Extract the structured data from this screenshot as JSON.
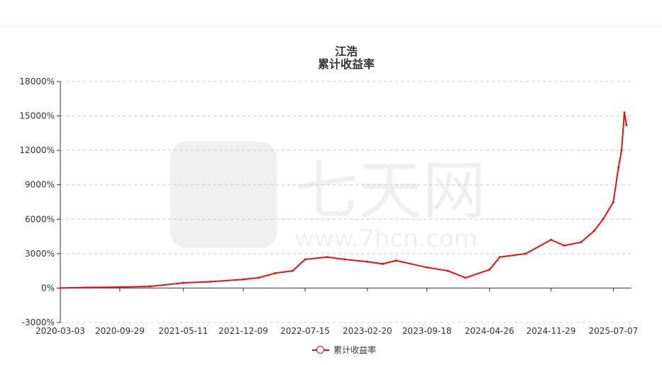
{
  "titles": {
    "line1": "江浩",
    "line2": "累计收益率"
  },
  "watermark": {
    "brand": "七天网",
    "url": "www.7hcn.com"
  },
  "chart_data": {
    "type": "line",
    "ylim": [
      -3000,
      18000
    ],
    "y_ticks": [
      "-3000%",
      "0%",
      "3000%",
      "6000%",
      "9000%",
      "12000%",
      "15000%",
      "18000%"
    ],
    "y_tick_values": [
      -3000,
      0,
      3000,
      6000,
      9000,
      12000,
      15000,
      18000
    ],
    "x_ticks": [
      "2020-03-03",
      "2020-09-29",
      "2021-05-11",
      "2021-12-09",
      "2022-07-15",
      "2023-02-20",
      "2023-09-18",
      "2024-04-26",
      "2024-11-29",
      "2025-07-07"
    ],
    "grid": "horizontal-dashed",
    "legend": "bottom-center",
    "series": [
      {
        "name": "累计收益率",
        "color": "#e8110f",
        "x": [
          "2020-03-03",
          "2020-06-01",
          "2020-09-29",
          "2021-01-15",
          "2021-05-11",
          "2021-08-15",
          "2021-12-09",
          "2022-02-01",
          "2022-04-01",
          "2022-06-01",
          "2022-07-15",
          "2022-10-01",
          "2022-12-01",
          "2023-02-20",
          "2023-04-15",
          "2023-06-01",
          "2023-09-18",
          "2023-12-01",
          "2024-02-01",
          "2024-04-26",
          "2024-06-01",
          "2024-09-01",
          "2024-11-29",
          "2025-01-15",
          "2025-03-15",
          "2025-05-01",
          "2025-06-01",
          "2025-07-07",
          "2025-07-25",
          "2025-08-05",
          "2025-08-15",
          "2025-08-22"
        ],
        "values": [
          0,
          50,
          80,
          150,
          450,
          550,
          750,
          900,
          1300,
          1500,
          2500,
          2700,
          2500,
          2300,
          2100,
          2400,
          1800,
          1500,
          900,
          1600,
          2700,
          3000,
          4200,
          3700,
          4000,
          5000,
          6000,
          7500,
          10500,
          12000,
          15300,
          14200
        ]
      }
    ]
  }
}
